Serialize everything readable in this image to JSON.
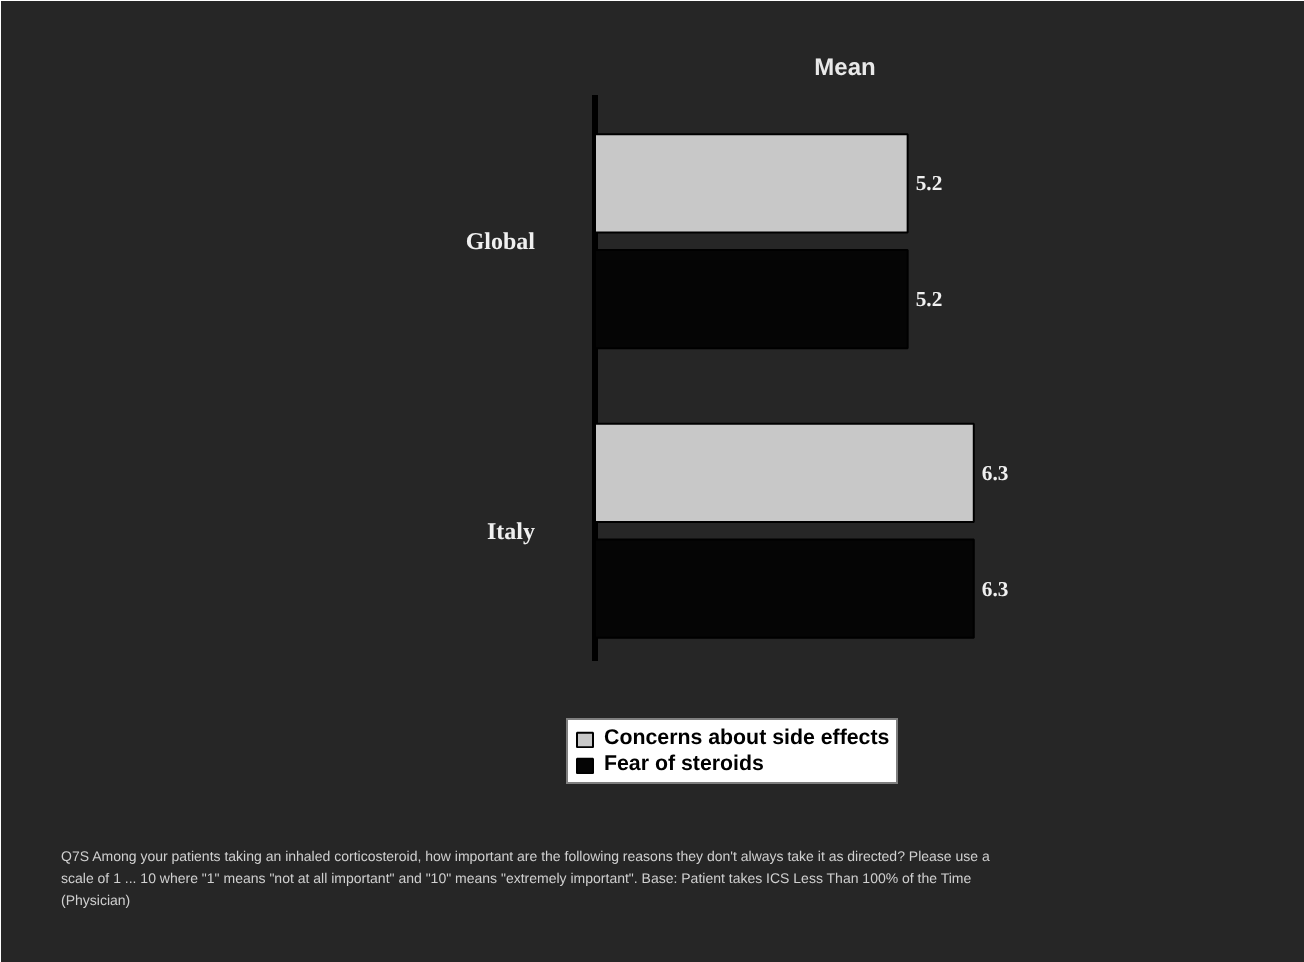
{
  "chart_data": {
    "type": "bar",
    "orientation": "horizontal",
    "title": "Mean",
    "categories": [
      "Global",
      "Italy"
    ],
    "series": [
      {
        "name": "Concerns about side effects",
        "color": "#c8c8c8",
        "values": [
          5.2,
          6.3
        ]
      },
      {
        "name": "Fear of steroids",
        "color": "#050505",
        "values": [
          5.2,
          6.3
        ]
      }
    ],
    "data_labels": true,
    "grid": false,
    "legend": "bottom",
    "annotations": [
      "Q7S Among your patients taking an inhaled corticosteroid, how important are the following reasons they don't always take it as directed? Please use a scale of 1 ... 10 where \"1\" means \"not at all important\" and \"10\" means \"extremely important\". Base: Patient takes ICS Less Than 100% of the Time (Physician)"
    ]
  }
}
